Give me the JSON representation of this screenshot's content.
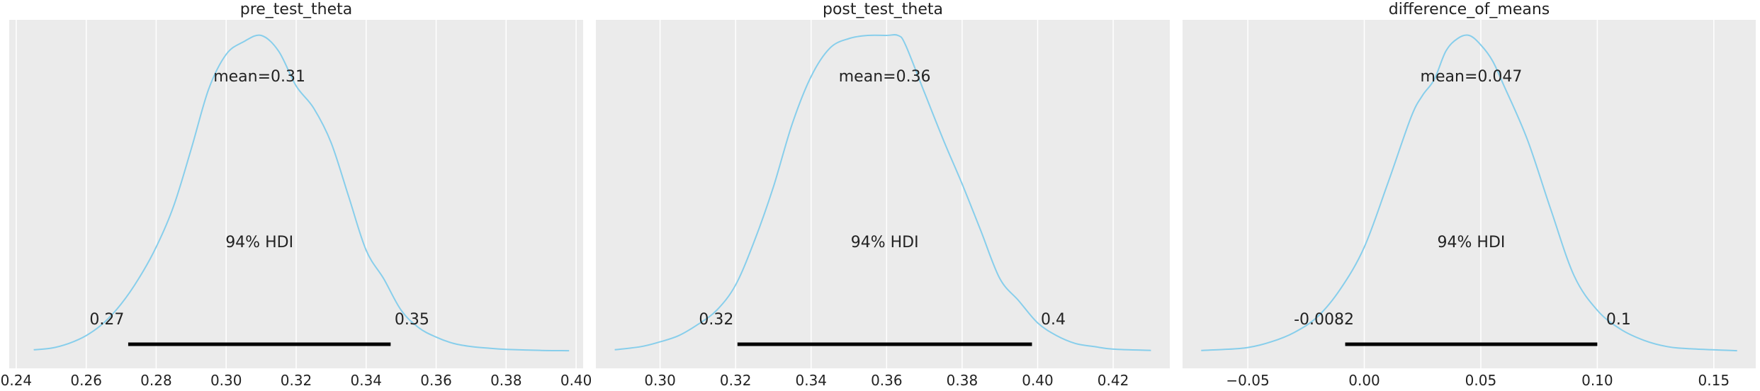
{
  "figure": {
    "background": "#ffffff",
    "panel_background": "#ebebeb",
    "grid_color": "#ffffff",
    "line_color": "#87ceeb",
    "hdi_color": "#000000"
  },
  "chart_data": [
    {
      "type": "line",
      "title": "pre_test_theta",
      "xlabel": "",
      "ylabel": "",
      "xlim": [
        0.238,
        0.402
      ],
      "xticks": [
        0.24,
        0.26,
        0.28,
        0.3,
        0.32,
        0.34,
        0.36,
        0.38,
        0.4
      ],
      "xtick_labels": [
        "0.24",
        "0.26",
        "0.28",
        "0.30",
        "0.32",
        "0.34",
        "0.36",
        "0.38",
        "0.40"
      ],
      "grid": true,
      "series": [
        {
          "x": [
            0.245,
            0.25,
            0.255,
            0.26,
            0.265,
            0.27,
            0.275,
            0.28,
            0.285,
            0.29,
            0.295,
            0.3,
            0.305,
            0.31,
            0.315,
            0.32,
            0.325,
            0.33,
            0.335,
            0.34,
            0.345,
            0.35,
            0.355,
            0.36,
            0.365,
            0.37,
            0.375,
            0.38,
            0.39,
            0.398
          ],
          "y": [
            0.005,
            0.01,
            0.025,
            0.05,
            0.09,
            0.15,
            0.23,
            0.33,
            0.46,
            0.64,
            0.83,
            0.94,
            0.98,
            1.0,
            0.95,
            0.84,
            0.77,
            0.66,
            0.49,
            0.32,
            0.23,
            0.13,
            0.075,
            0.045,
            0.025,
            0.015,
            0.01,
            0.006,
            0.003,
            0.002
          ]
        }
      ],
      "mean_label": "mean=0.31",
      "hdi_label": "94% HDI",
      "hdi": [
        0.272,
        0.347
      ],
      "hdi_low_label": "0.27",
      "hdi_high_label": "0.35"
    },
    {
      "type": "line",
      "title": "post_test_theta",
      "xlabel": "",
      "ylabel": "",
      "xlim": [
        0.283,
        0.435
      ],
      "xticks": [
        0.3,
        0.32,
        0.34,
        0.36,
        0.38,
        0.4,
        0.42
      ],
      "xtick_labels": [
        "0.30",
        "0.32",
        "0.34",
        "0.36",
        "0.38",
        "0.40",
        "0.42"
      ],
      "grid": true,
      "series": [
        {
          "x": [
            0.288,
            0.295,
            0.3,
            0.305,
            0.31,
            0.315,
            0.32,
            0.325,
            0.33,
            0.335,
            0.34,
            0.345,
            0.35,
            0.355,
            0.36,
            0.363,
            0.365,
            0.37,
            0.375,
            0.38,
            0.385,
            0.39,
            0.395,
            0.4,
            0.405,
            0.41,
            0.415,
            0.42,
            0.43
          ],
          "y": [
            0.005,
            0.015,
            0.03,
            0.05,
            0.085,
            0.13,
            0.21,
            0.35,
            0.52,
            0.72,
            0.87,
            0.96,
            0.99,
            1.0,
            1.0,
            1.0,
            0.97,
            0.82,
            0.67,
            0.53,
            0.38,
            0.23,
            0.16,
            0.09,
            0.05,
            0.025,
            0.015,
            0.007,
            0.003
          ]
        }
      ],
      "mean_label": "mean=0.36",
      "hdi_label": "94% HDI",
      "hdi": [
        0.3205,
        0.3985
      ],
      "hdi_low_label": "0.32",
      "hdi_high_label": "0.4"
    },
    {
      "type": "line",
      "title": "difference_of_means",
      "xlabel": "",
      "ylabel": "",
      "xlim": [
        -0.078,
        0.168
      ],
      "xticks": [
        -0.05,
        0.0,
        0.05,
        0.1,
        0.15
      ],
      "xtick_labels": [
        "−0.05",
        "0.00",
        "0.05",
        "0.10",
        "0.15"
      ],
      "grid": true,
      "series": [
        {
          "x": [
            -0.07,
            -0.06,
            -0.05,
            -0.04,
            -0.03,
            -0.02,
            -0.01,
            0.0,
            0.01,
            0.02,
            0.025,
            0.03,
            0.035,
            0.04,
            0.045,
            0.05,
            0.055,
            0.06,
            0.07,
            0.08,
            0.09,
            0.1,
            0.11,
            0.12,
            0.13,
            0.14,
            0.16
          ],
          "y": [
            0.003,
            0.006,
            0.012,
            0.03,
            0.06,
            0.11,
            0.2,
            0.33,
            0.53,
            0.74,
            0.81,
            0.86,
            0.95,
            0.99,
            1.0,
            0.97,
            0.92,
            0.84,
            0.67,
            0.45,
            0.24,
            0.13,
            0.07,
            0.035,
            0.015,
            0.008,
            0.002
          ]
        }
      ],
      "mean_label": "mean=0.047",
      "hdi_label": "94% HDI",
      "hdi": [
        -0.0082,
        0.1
      ],
      "hdi_low_label": "-0.0082",
      "hdi_high_label": "0.1"
    }
  ]
}
